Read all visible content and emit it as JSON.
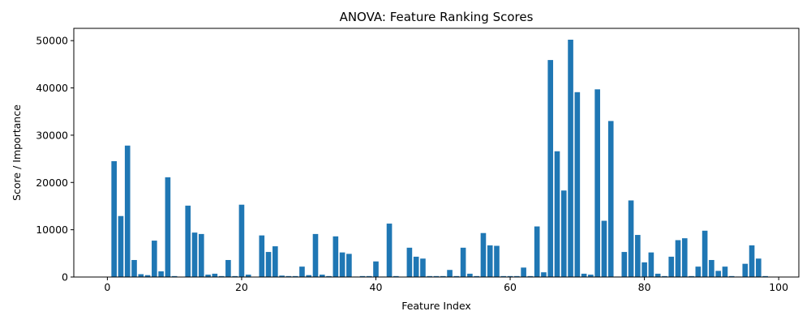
{
  "chart_data": {
    "type": "bar",
    "title": "ANOVA: Feature Ranking Scores",
    "xlabel": "Feature Index",
    "ylabel": "Score / Importance",
    "xlim": [
      -5,
      103
    ],
    "ylim": [
      0,
      52600
    ],
    "xticks": [
      0,
      20,
      40,
      60,
      80,
      100
    ],
    "yticks": [
      0,
      10000,
      20000,
      30000,
      40000,
      50000
    ],
    "grid": false,
    "bar_color": "#1f77b4",
    "x": [
      0,
      1,
      2,
      3,
      4,
      5,
      6,
      7,
      8,
      9,
      10,
      11,
      12,
      13,
      14,
      15,
      16,
      17,
      18,
      19,
      20,
      21,
      22,
      23,
      24,
      25,
      26,
      27,
      28,
      29,
      30,
      31,
      32,
      33,
      34,
      35,
      36,
      37,
      38,
      39,
      40,
      41,
      42,
      43,
      44,
      45,
      46,
      47,
      48,
      49,
      50,
      51,
      52,
      53,
      54,
      55,
      56,
      57,
      58,
      59,
      60,
      61,
      62,
      63,
      64,
      65,
      66,
      67,
      68,
      69,
      70,
      71,
      72,
      73,
      74,
      75,
      76,
      77,
      78,
      79,
      80,
      81,
      82,
      83,
      84,
      85,
      86,
      87,
      88,
      89,
      90,
      91,
      92,
      93,
      94,
      95,
      96,
      97,
      98,
      99
    ],
    "values": [
      0,
      24500,
      12900,
      27800,
      3600,
      600,
      400,
      7700,
      1200,
      21100,
      200,
      0,
      15100,
      9400,
      9100,
      500,
      700,
      200,
      3600,
      200,
      15300,
      500,
      0,
      8800,
      5300,
      6500,
      300,
      200,
      200,
      2200,
      400,
      9100,
      500,
      200,
      8600,
      5200,
      4900,
      100,
      200,
      200,
      3300,
      100,
      11300,
      200,
      0,
      6200,
      4300,
      3900,
      200,
      200,
      200,
      1500,
      200,
      6200,
      700,
      200,
      9300,
      6700,
      6600,
      200,
      200,
      200,
      2000,
      200,
      10700,
      1000,
      45900,
      26600,
      18300,
      50200,
      39100,
      700,
      500,
      39700,
      11900,
      33000,
      100,
      5300,
      16200,
      8900,
      3100,
      5200,
      700,
      200,
      4300,
      7800,
      8200,
      200,
      2200,
      9800,
      3600,
      1300,
      2200,
      200,
      100,
      2800,
      6700,
      3900,
      200,
      0
    ]
  }
}
